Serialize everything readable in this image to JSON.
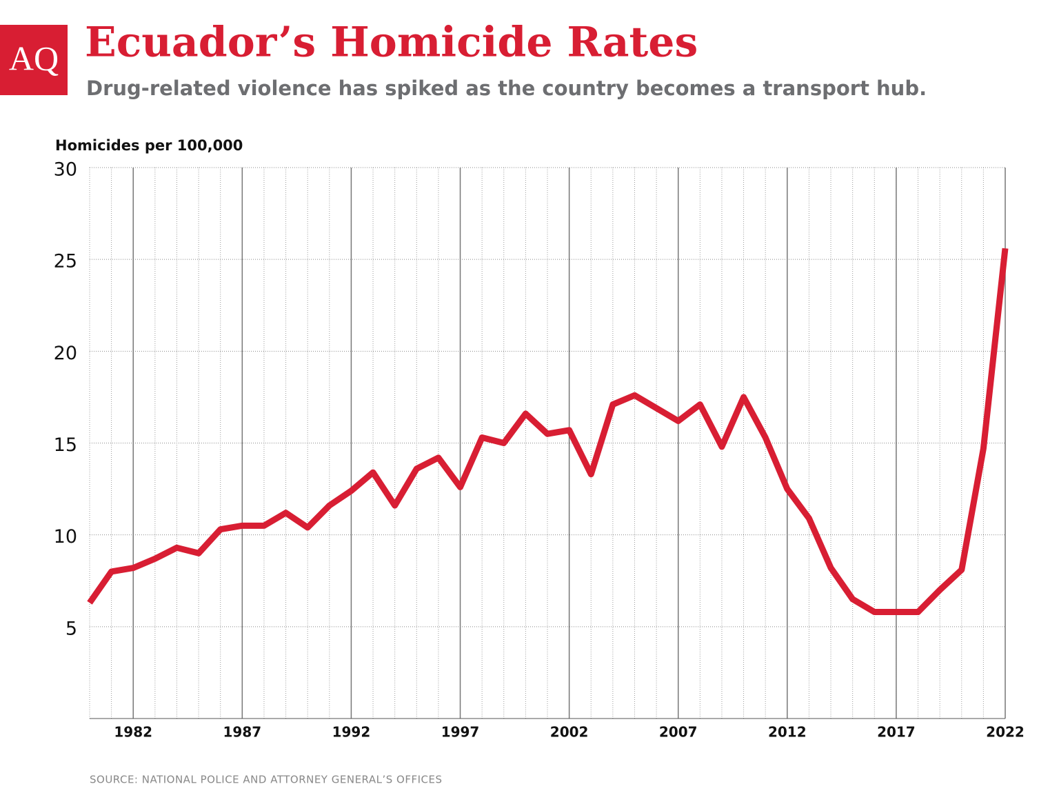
{
  "logo": "AQ",
  "chart_data": {
    "type": "line",
    "title": "Ecuador’s Homicide Rates",
    "subtitle": "Drug-related violence has spiked as the country becomes a transport hub.",
    "y_label": "Homicides per 100,000",
    "source": "SOURCE: NATIONAL POLICE AND ATTORNEY GENERAL’S OFFICES",
    "x": [
      1980,
      1981,
      1982,
      1983,
      1984,
      1985,
      1986,
      1987,
      1988,
      1989,
      1990,
      1991,
      1992,
      1993,
      1994,
      1995,
      1996,
      1997,
      1998,
      1999,
      2000,
      2001,
      2002,
      2003,
      2004,
      2005,
      2006,
      2007,
      2008,
      2009,
      2010,
      2011,
      2012,
      2013,
      2014,
      2015,
      2016,
      2017,
      2018,
      2019,
      2020,
      2021,
      2022
    ],
    "series": [
      {
        "name": "Homicides per 100,000",
        "color": "#d81e33",
        "values": [
          6.3,
          8.0,
          8.2,
          8.7,
          9.3,
          9.0,
          10.3,
          10.5,
          10.5,
          11.2,
          10.4,
          11.6,
          12.4,
          13.4,
          11.6,
          13.6,
          14.2,
          12.6,
          15.3,
          15.0,
          16.6,
          15.5,
          15.7,
          13.3,
          17.1,
          17.6,
          16.9,
          16.2,
          17.1,
          14.8,
          17.5,
          15.3,
          12.5,
          10.9,
          8.2,
          6.5,
          5.8,
          5.8,
          5.8,
          7.0,
          8.1,
          14.7,
          25.6
        ]
      }
    ],
    "xlim": [
      1980,
      2022
    ],
    "xticks": [
      1982,
      1987,
      1992,
      1997,
      2002,
      2007,
      2012,
      2017,
      2022
    ],
    "ylim": [
      0,
      30
    ],
    "yticks": [
      5,
      10,
      15,
      20,
      25,
      30
    ],
    "grid": true
  }
}
